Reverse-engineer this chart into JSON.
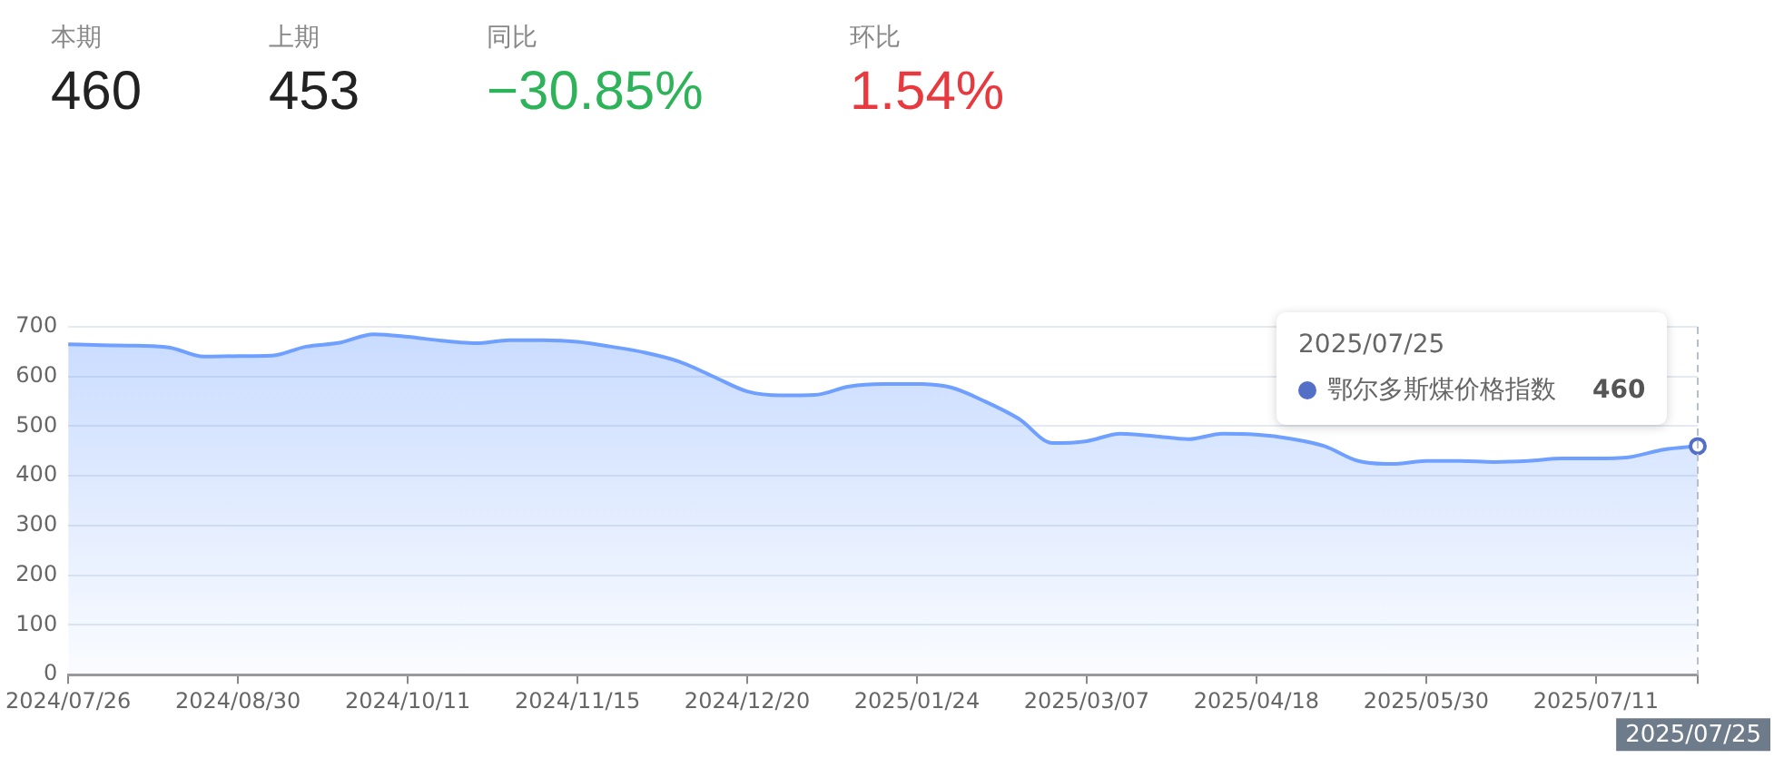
{
  "chart_data": [
    {
      "type": "other",
      "annotations": [
        "本期",
        "460",
        "上期",
        "453",
        "同比",
        "−30.85%",
        "环比",
        "1.54%"
      ],
      "colors": [
        "#222222",
        "#222222",
        "#2eb35a",
        "#e8393f"
      ]
    },
    {
      "type": "area",
      "categories": [
        "2024/07/26",
        null,
        null,
        null,
        null,
        "2024/08/30",
        null,
        null,
        null,
        null,
        "2024/10/11",
        null,
        null,
        null,
        null,
        "2024/11/15",
        null,
        null,
        null,
        null,
        "2024/12/20",
        null,
        null,
        null,
        null,
        "2025/01/24",
        null,
        null,
        null,
        null,
        "2025/03/07",
        null,
        null,
        null,
        null,
        "2025/04/18",
        null,
        null,
        null,
        null,
        "2025/05/30",
        null,
        null,
        null,
        null,
        "2025/07/11",
        null,
        null,
        "2025/07/25"
      ],
      "series": [
        {
          "name": "鄂尔多斯煤价格指数",
          "color": "#6fa0ff",
          "values": [
            665,
            663,
            662,
            658,
            640,
            641,
            642,
            660,
            668,
            685,
            680,
            672,
            667,
            673,
            673,
            670,
            660,
            648,
            630,
            600,
            570,
            562,
            563,
            580,
            585,
            585,
            578,
            550,
            515,
            466,
            470,
            485,
            480,
            474,
            485,
            483,
            475,
            460,
            430,
            424,
            430,
            430,
            428,
            430,
            435,
            435,
            438,
            453,
            460
          ],
          "value_labels": [
            null,
            null,
            null,
            null,
            null,
            null,
            null,
            null,
            null,
            null,
            null,
            null,
            null,
            null,
            null,
            null,
            null,
            null,
            null,
            null,
            null,
            null,
            null,
            null,
            null,
            null,
            null,
            null,
            null,
            null,
            null,
            null,
            null,
            null,
            null,
            null,
            null,
            null,
            null,
            null,
            null,
            null,
            null,
            null,
            null,
            null,
            null,
            null,
            "460"
          ]
        }
      ],
      "ylim": [
        0,
        700
      ],
      "yticks": [
        0,
        100,
        200,
        300,
        400,
        500,
        600,
        700
      ],
      "grid": "y",
      "ref_lines": [
        {
          "axis": "x",
          "value": "2025/07/25",
          "line_style": "dashed",
          "color": "#b8bfcc"
        }
      ]
    }
  ]
}
